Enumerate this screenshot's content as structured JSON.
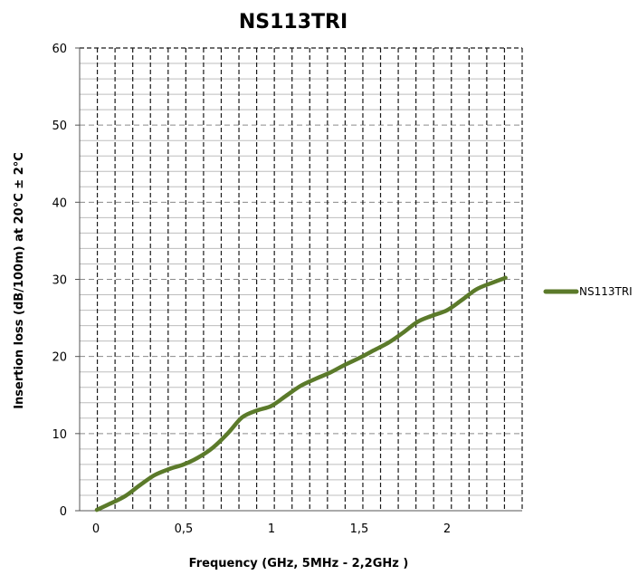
{
  "chart_data": {
    "type": "line",
    "title": "NS113TRI",
    "xlabel": "Frequency (GHz, 5MHz - 2,2GHz )",
    "ylabel": "Insertion loss (dB/100m) at 20°C ± 2°C",
    "xlim": [
      0,
      2.4
    ],
    "ylim": [
      0,
      60
    ],
    "x_ticks": [
      0,
      0.5,
      1,
      1.5,
      2
    ],
    "x_tick_labels": [
      "0",
      "0,5",
      "1",
      "1,5",
      "2"
    ],
    "y_ticks": [
      0,
      10,
      20,
      30,
      40,
      50,
      60
    ],
    "y_tick_labels": [
      "0",
      "10",
      "20",
      "30",
      "40",
      "50",
      "60"
    ],
    "grid": true,
    "legend_position": "right",
    "series": [
      {
        "name": "NS113TRI",
        "color": "#5b7a2a",
        "x": [
          0.005,
          0.08,
          0.167,
          0.25,
          0.333,
          0.417,
          0.5,
          0.583,
          0.667,
          0.75,
          0.833,
          0.917,
          1.0,
          1.083,
          1.167,
          1.25,
          1.333,
          1.417,
          1.5,
          1.583,
          1.667,
          1.75,
          1.833,
          1.917,
          2.0,
          2.083,
          2.167,
          2.25,
          2.333
        ],
        "y": [
          0.1,
          0.9,
          1.9,
          3.3,
          4.6,
          5.4,
          6.0,
          6.9,
          8.2,
          10.0,
          12.1,
          13.0,
          13.6,
          14.9,
          16.2,
          17.1,
          17.9,
          18.9,
          19.8,
          20.8,
          21.8,
          23.1,
          24.5,
          25.3,
          26.0,
          27.3,
          28.7,
          29.5,
          30.2
        ]
      }
    ]
  }
}
